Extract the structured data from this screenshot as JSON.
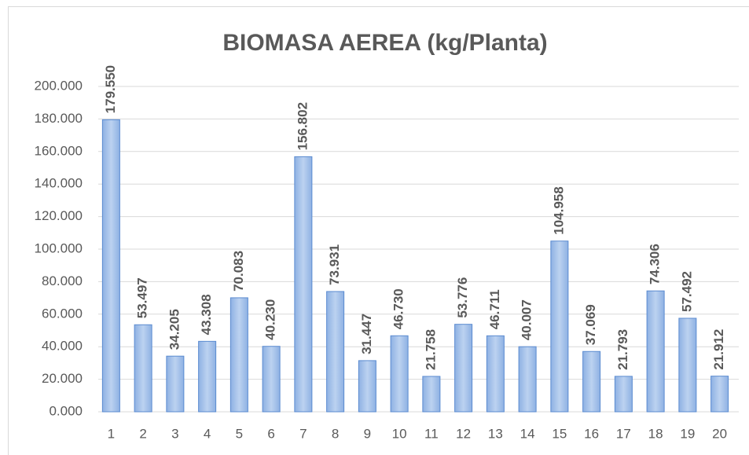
{
  "chart_data": {
    "type": "bar",
    "title": "BIOMASA AEREA (kg/Planta)",
    "categories": [
      "1",
      "2",
      "3",
      "4",
      "5",
      "6",
      "7",
      "8",
      "9",
      "10",
      "11",
      "12",
      "13",
      "14",
      "15",
      "16",
      "17",
      "18",
      "19",
      "20"
    ],
    "values": [
      179.55,
      53.497,
      34.205,
      43.308,
      70.083,
      40.23,
      156.802,
      73.931,
      31.447,
      46.73,
      21.758,
      53.776,
      46.711,
      40.007,
      104.958,
      37.069,
      21.793,
      74.306,
      57.492,
      21.912
    ],
    "value_labels": [
      "179.550",
      "53.497",
      "34.205",
      "43.308",
      "70.083",
      "40.230",
      "156.802",
      "73.931",
      "31.447",
      "46.730",
      "21.758",
      "53.776",
      "46.711",
      "40.007",
      "104.958",
      "37.069",
      "21.793",
      "74.306",
      "57.492",
      "21.912"
    ],
    "color": "#a9c4eb",
    "ylim": [
      0,
      200
    ],
    "yticks": [
      {
        "value": 0,
        "label": "0.000"
      },
      {
        "value": 20,
        "label": "20.000"
      },
      {
        "value": 40,
        "label": "40.000"
      },
      {
        "value": 60,
        "label": "60.000"
      },
      {
        "value": 80,
        "label": "80.000"
      },
      {
        "value": 100,
        "label": "100.000"
      },
      {
        "value": 120,
        "label": "120.000"
      },
      {
        "value": 140,
        "label": "140.000"
      },
      {
        "value": 160,
        "label": "160.000"
      },
      {
        "value": 180,
        "label": "180.000"
      },
      {
        "value": 200,
        "label": "200.000"
      }
    ],
    "grid": true
  }
}
